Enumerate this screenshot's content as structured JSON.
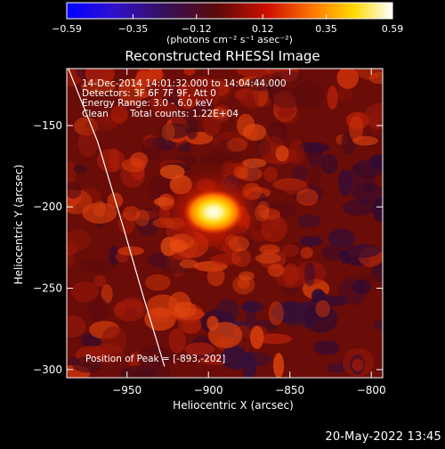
{
  "chart_data": {
    "type": "heatmap",
    "title": "Reconstructed RHESSI Image",
    "xlabel": "Heliocentric X (arcsec)",
    "ylabel": "Heliocentric Y (arcsec)",
    "xlim": [
      -987,
      -793
    ],
    "ylim": [
      -305,
      -115
    ],
    "x_ticks": [
      -950,
      -900,
      -850,
      -800
    ],
    "y_ticks": [
      -150,
      -200,
      -250,
      -300
    ],
    "x_tick_labels": [
      "−950",
      "−900",
      "−850",
      "−800"
    ],
    "y_tick_labels": [
      "−150",
      "−200",
      "−250",
      "−300"
    ],
    "colorbar": {
      "ticks": [
        -0.59,
        -0.35,
        -0.12,
        0.12,
        0.35,
        0.59
      ],
      "tick_labels": [
        "−0.59",
        "−0.35",
        "−0.12",
        "0.12",
        "0.35",
        "0.59"
      ],
      "unit_label": "(photons cm⁻² s⁻¹ asec⁻²)",
      "colormap": "blue-purple-red-yellow-white"
    },
    "peak": {
      "x": -893,
      "y": -202,
      "value": 0.59
    },
    "limb_arc": [
      [
        -986,
        -115
      ],
      [
        -968,
        -160
      ],
      [
        -953,
        -210
      ],
      [
        -940,
        -255
      ],
      [
        -927,
        -298
      ]
    ],
    "annotations": {
      "time_range": "14-Dec-2014 14:01:32.000 to 14:04:44.000",
      "detectors": "Detectors: 3F 6F 7F 9F, Att 0",
      "energy": "Energy Range: 3.0 - 6.0 keV",
      "method": "Clean",
      "counts": "Total counts: 1.22E+04",
      "peak_position": "Position of Peak = [-893,-202]"
    }
  },
  "timestamp": "20-May-2022 13:45",
  "colors": {
    "background": "#000000",
    "foreground": "#ffffff",
    "map_base": "#6a0c07"
  }
}
